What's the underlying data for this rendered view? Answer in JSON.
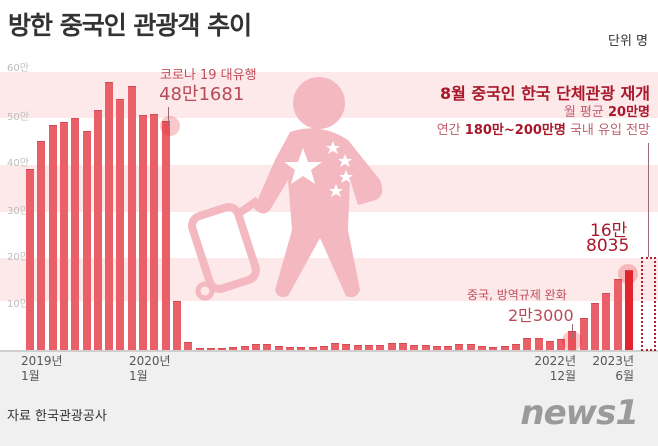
{
  "header": {
    "title": "방한 중국인 관광객 추이",
    "unit": "단위 명"
  },
  "annotations": {
    "covid_label": "코로나 19 대유행",
    "covid_value": "48만1681",
    "resume_title": "8월 중국인 한국 단체관광 재개",
    "resume_line2_prefix": "월 평균 ",
    "resume_line2_bold": "20만명",
    "resume_line3_prefix": "연간 ",
    "resume_line3_bold": "180만~200만명",
    "resume_line3_suffix": " 국내 유입 전망",
    "latest_value_line1": "16만",
    "latest_value_line2": "8035",
    "ease_label": "중국, 방역규제 완화",
    "ease_value": "2만3000"
  },
  "footer": {
    "source": "자료 한국관광공사",
    "logo": "news1"
  },
  "colors": {
    "bar": "#ea6068",
    "highlight_bar": "#e2242e",
    "band": "#fde8ea",
    "figure": "#f4b8c0",
    "annotation_dark": "#a8182a"
  },
  "chart_data": {
    "type": "bar",
    "title": "방한 중국인 관광객 추이",
    "ylabel": "단위 명",
    "ylim": [
      0,
      600000
    ],
    "yticks": [
      "10만",
      "20만",
      "30만",
      "40만",
      "50만",
      "60만"
    ],
    "x_tick_labels": [
      {
        "index": 0,
        "line1": "2019년",
        "line2": "1월"
      },
      {
        "index": 12,
        "line1": "2020년",
        "line2": "1월"
      },
      {
        "index": 47,
        "line1": "2022년",
        "line2": "12월"
      },
      {
        "index": 53,
        "line1": "2023년",
        "line2": "6월"
      }
    ],
    "categories": [
      "2019-01",
      "2019-02",
      "2019-03",
      "2019-04",
      "2019-05",
      "2019-06",
      "2019-07",
      "2019-08",
      "2019-09",
      "2019-10",
      "2019-11",
      "2019-12",
      "2020-01",
      "2020-02",
      "2020-03",
      "2020-04",
      "2020-05",
      "2020-06",
      "2020-07",
      "2020-08",
      "2020-09",
      "2020-10",
      "2020-11",
      "2020-12",
      "2021-01",
      "2021-02",
      "2021-03",
      "2021-04",
      "2021-05",
      "2021-06",
      "2021-07",
      "2021-08",
      "2021-09",
      "2021-10",
      "2021-11",
      "2021-12",
      "2022-01",
      "2022-02",
      "2022-03",
      "2022-04",
      "2022-05",
      "2022-06",
      "2022-07",
      "2022-08",
      "2022-09",
      "2022-10",
      "2022-11",
      "2022-12",
      "2023-01",
      "2023-02",
      "2023-03",
      "2023-04",
      "2023-05",
      "2023-06"
    ],
    "values": [
      382000,
      440000,
      474000,
      480000,
      488000,
      461000,
      506000,
      565000,
      529000,
      556000,
      494000,
      496000,
      481681,
      104000,
      16000,
      4000,
      5000,
      5000,
      6000,
      9000,
      12000,
      12000,
      9000,
      7000,
      6000,
      6000,
      9000,
      14000,
      13000,
      11000,
      11000,
      11000,
      14000,
      15000,
      11000,
      10000,
      9000,
      8000,
      12000,
      12000,
      8000,
      7000,
      8000,
      13000,
      26000,
      25000,
      19000,
      23000,
      40000,
      68000,
      100000,
      121000,
      150000,
      168035
    ],
    "highlight_indices": [
      12,
      47,
      53
    ],
    "forecast": {
      "label": "월 평균 20만명",
      "value": 200000
    },
    "grid": false,
    "legend": "none"
  }
}
